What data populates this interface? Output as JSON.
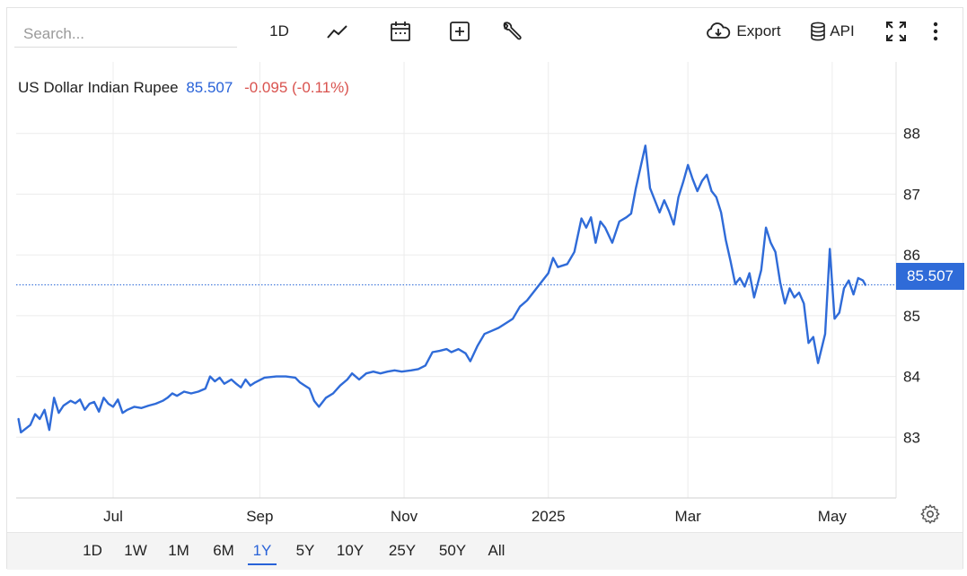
{
  "toolbar": {
    "search_placeholder": "Search...",
    "interval_label": "1D",
    "export_label": "Export",
    "api_label": "API"
  },
  "legend": {
    "name": "US Dollar Indian Rupee",
    "value": "85.507",
    "change": "-0.095 (-0.11%)"
  },
  "price_tag": "85.507",
  "colors": {
    "line": "#2f6bd8",
    "accent": "#2862d8",
    "negative": "#d9534f",
    "grid": "#ececec"
  },
  "icons": [
    "trend-line-icon",
    "calendar-icon",
    "plus-box-icon",
    "wrench-icon",
    "cloud-download-icon",
    "database-icon",
    "fullscreen-icon",
    "more-vertical-icon",
    "gear-icon"
  ],
  "ranges": [
    "1D",
    "1W",
    "1M",
    "6M",
    "1Y",
    "5Y",
    "10Y",
    "25Y",
    "50Y",
    "All"
  ],
  "active_range": "1Y",
  "chart_data": {
    "type": "line",
    "title": "US Dollar Indian Rupee",
    "x_unit": "date",
    "y_ticks": [
      83,
      84,
      85,
      86,
      87,
      88
    ],
    "x_ticks": [
      {
        "date": "2024-07-01",
        "label": "Jul"
      },
      {
        "date": "2024-09-01",
        "label": "Sep"
      },
      {
        "date": "2024-11-01",
        "label": "Nov"
      },
      {
        "date": "2025-01-01",
        "label": "2025"
      },
      {
        "date": "2025-03-01",
        "label": "Mar"
      },
      {
        "date": "2025-05-01",
        "label": "May"
      }
    ],
    "ylim": [
      82.0,
      89.0
    ],
    "xlim": [
      "2024-05-21",
      "2025-05-28"
    ],
    "last_value": 85.507,
    "grid": true,
    "series": [
      {
        "points": [
          [
            "2024-05-22",
            83.3
          ],
          [
            "2024-05-23",
            83.08
          ],
          [
            "2024-05-27",
            83.2
          ],
          [
            "2024-05-29",
            83.38
          ],
          [
            "2024-05-31",
            83.3
          ],
          [
            "2024-06-02",
            83.45
          ],
          [
            "2024-06-04",
            83.12
          ],
          [
            "2024-06-06",
            83.65
          ],
          [
            "2024-06-08",
            83.4
          ],
          [
            "2024-06-10",
            83.52
          ],
          [
            "2024-06-13",
            83.6
          ],
          [
            "2024-06-15",
            83.56
          ],
          [
            "2024-06-17",
            83.62
          ],
          [
            "2024-06-19",
            83.45
          ],
          [
            "2024-06-21",
            83.55
          ],
          [
            "2024-06-23",
            83.58
          ],
          [
            "2024-06-25",
            83.42
          ],
          [
            "2024-06-27",
            83.65
          ],
          [
            "2024-06-29",
            83.55
          ],
          [
            "2024-07-01",
            83.5
          ],
          [
            "2024-07-03",
            83.62
          ],
          [
            "2024-07-05",
            83.4
          ],
          [
            "2024-07-07",
            83.45
          ],
          [
            "2024-07-10",
            83.5
          ],
          [
            "2024-07-13",
            83.48
          ],
          [
            "2024-07-16",
            83.52
          ],
          [
            "2024-07-19",
            83.55
          ],
          [
            "2024-07-22",
            83.6
          ],
          [
            "2024-07-24",
            83.65
          ],
          [
            "2024-07-26",
            83.72
          ],
          [
            "2024-07-28",
            83.68
          ],
          [
            "2024-07-31",
            83.75
          ],
          [
            "2024-08-03",
            83.72
          ],
          [
            "2024-08-06",
            83.75
          ],
          [
            "2024-08-09",
            83.8
          ],
          [
            "2024-08-11",
            84.0
          ],
          [
            "2024-08-13",
            83.92
          ],
          [
            "2024-08-15",
            83.98
          ],
          [
            "2024-08-17",
            83.88
          ],
          [
            "2024-08-20",
            83.95
          ],
          [
            "2024-08-22",
            83.88
          ],
          [
            "2024-08-24",
            83.82
          ],
          [
            "2024-08-26",
            83.95
          ],
          [
            "2024-08-28",
            83.85
          ],
          [
            "2024-08-30",
            83.9
          ],
          [
            "2024-09-03",
            83.98
          ],
          [
            "2024-09-08",
            84.0
          ],
          [
            "2024-09-12",
            84.0
          ],
          [
            "2024-09-16",
            83.98
          ],
          [
            "2024-09-18",
            83.9
          ],
          [
            "2024-09-20",
            83.85
          ],
          [
            "2024-09-22",
            83.8
          ],
          [
            "2024-09-24",
            83.6
          ],
          [
            "2024-09-26",
            83.5
          ],
          [
            "2024-09-29",
            83.65
          ],
          [
            "2024-10-02",
            83.72
          ],
          [
            "2024-10-05",
            83.85
          ],
          [
            "2024-10-08",
            83.95
          ],
          [
            "2024-10-10",
            84.05
          ],
          [
            "2024-10-13",
            83.95
          ],
          [
            "2024-10-16",
            84.05
          ],
          [
            "2024-10-19",
            84.08
          ],
          [
            "2024-10-22",
            84.05
          ],
          [
            "2024-10-25",
            84.08
          ],
          [
            "2024-10-28",
            84.1
          ],
          [
            "2024-10-31",
            84.08
          ],
          [
            "2024-11-04",
            84.1
          ],
          [
            "2024-11-07",
            84.12
          ],
          [
            "2024-11-10",
            84.18
          ],
          [
            "2024-11-13",
            84.4
          ],
          [
            "2024-11-16",
            84.42
          ],
          [
            "2024-11-19",
            84.45
          ],
          [
            "2024-11-21",
            84.4
          ],
          [
            "2024-11-24",
            84.45
          ],
          [
            "2024-11-27",
            84.38
          ],
          [
            "2024-11-29",
            84.25
          ],
          [
            "2024-12-02",
            84.5
          ],
          [
            "2024-12-05",
            84.7
          ],
          [
            "2024-12-08",
            84.75
          ],
          [
            "2024-12-11",
            84.8
          ],
          [
            "2024-12-13",
            84.85
          ],
          [
            "2024-12-15",
            84.9
          ],
          [
            "2024-12-17",
            84.95
          ],
          [
            "2024-12-20",
            85.15
          ],
          [
            "2024-12-23",
            85.25
          ],
          [
            "2024-12-26",
            85.4
          ],
          [
            "2024-12-29",
            85.55
          ],
          [
            "2025-01-01",
            85.7
          ],
          [
            "2025-01-03",
            85.95
          ],
          [
            "2025-01-05",
            85.8
          ],
          [
            "2025-01-09",
            85.85
          ],
          [
            "2025-01-12",
            86.05
          ],
          [
            "2025-01-15",
            86.6
          ],
          [
            "2025-01-17",
            86.45
          ],
          [
            "2025-01-19",
            86.62
          ],
          [
            "2025-01-21",
            86.2
          ],
          [
            "2025-01-23",
            86.55
          ],
          [
            "2025-01-25",
            86.45
          ],
          [
            "2025-01-28",
            86.2
          ],
          [
            "2025-01-31",
            86.55
          ],
          [
            "2025-02-03",
            86.62
          ],
          [
            "2025-02-05",
            86.68
          ],
          [
            "2025-02-07",
            87.1
          ],
          [
            "2025-02-09",
            87.45
          ],
          [
            "2025-02-11",
            87.8
          ],
          [
            "2025-02-13",
            87.1
          ],
          [
            "2025-02-15",
            86.9
          ],
          [
            "2025-02-17",
            86.7
          ],
          [
            "2025-02-19",
            86.9
          ],
          [
            "2025-02-21",
            86.72
          ],
          [
            "2025-02-23",
            86.5
          ],
          [
            "2025-02-25",
            86.95
          ],
          [
            "2025-02-27",
            87.2
          ],
          [
            "2025-03-01",
            87.48
          ],
          [
            "2025-03-03",
            87.25
          ],
          [
            "2025-03-05",
            87.05
          ],
          [
            "2025-03-07",
            87.22
          ],
          [
            "2025-03-09",
            87.32
          ],
          [
            "2025-03-11",
            87.05
          ],
          [
            "2025-03-13",
            86.95
          ],
          [
            "2025-03-15",
            86.7
          ],
          [
            "2025-03-17",
            86.25
          ],
          [
            "2025-03-19",
            85.9
          ],
          [
            "2025-03-21",
            85.52
          ],
          [
            "2025-03-23",
            85.62
          ],
          [
            "2025-03-25",
            85.48
          ],
          [
            "2025-03-27",
            85.7
          ],
          [
            "2025-03-29",
            85.3
          ],
          [
            "2025-04-01",
            85.75
          ],
          [
            "2025-04-03",
            86.45
          ],
          [
            "2025-04-05",
            86.2
          ],
          [
            "2025-04-07",
            86.05
          ],
          [
            "2025-04-09",
            85.55
          ],
          [
            "2025-04-11",
            85.2
          ],
          [
            "2025-04-13",
            85.45
          ],
          [
            "2025-04-15",
            85.3
          ],
          [
            "2025-04-17",
            85.38
          ],
          [
            "2025-04-19",
            85.2
          ],
          [
            "2025-04-21",
            84.55
          ],
          [
            "2025-04-23",
            84.65
          ],
          [
            "2025-04-25",
            84.22
          ],
          [
            "2025-04-28",
            84.7
          ],
          [
            "2025-04-30",
            86.1
          ],
          [
            "2025-05-02",
            84.95
          ],
          [
            "2025-05-04",
            85.05
          ],
          [
            "2025-05-06",
            85.45
          ],
          [
            "2025-05-08",
            85.58
          ],
          [
            "2025-05-10",
            85.35
          ],
          [
            "2025-05-12",
            85.62
          ],
          [
            "2025-05-14",
            85.58
          ],
          [
            "2025-05-15",
            85.507
          ]
        ]
      }
    ]
  }
}
